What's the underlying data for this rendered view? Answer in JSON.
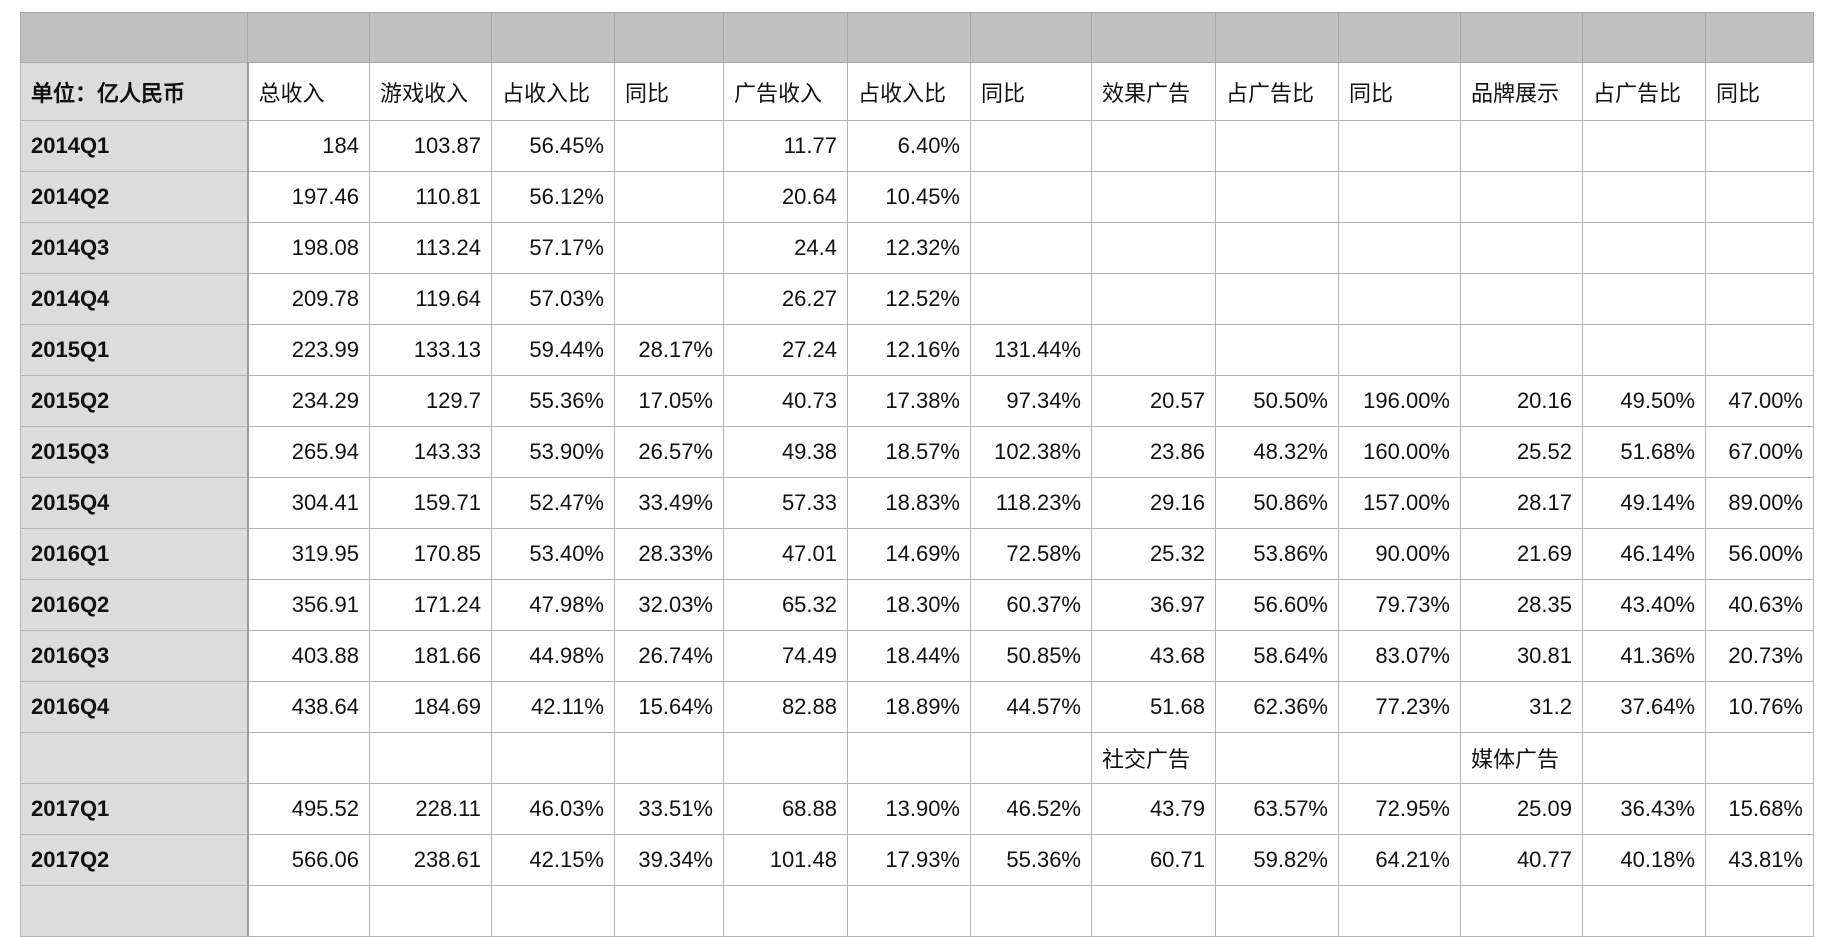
{
  "sheet": {
    "colors": {
      "top_band": "#c0c0c0",
      "row_header": "#dcdcdc",
      "grid": "#b4b4b4"
    },
    "headers": [
      "单位：亿人民币",
      "总收入",
      "游戏收入",
      "占收入比",
      "同比",
      "广告收入",
      "占收入比",
      "同比",
      "效果广告",
      "占广告比",
      "同比",
      "品牌展示",
      "占广告比",
      "同比"
    ],
    "rows": [
      [
        "2014Q1",
        "184",
        "103.87",
        "56.45%",
        "",
        "11.77",
        "6.40%",
        "",
        "",
        "",
        "",
        "",
        "",
        ""
      ],
      [
        "2014Q2",
        "197.46",
        "110.81",
        "56.12%",
        "",
        "20.64",
        "10.45%",
        "",
        "",
        "",
        "",
        "",
        "",
        ""
      ],
      [
        "2014Q3",
        "198.08",
        "113.24",
        "57.17%",
        "",
        "24.4",
        "12.32%",
        "",
        "",
        "",
        "",
        "",
        "",
        ""
      ],
      [
        "2014Q4",
        "209.78",
        "119.64",
        "57.03%",
        "",
        "26.27",
        "12.52%",
        "",
        "",
        "",
        "",
        "",
        "",
        ""
      ],
      [
        "2015Q1",
        "223.99",
        "133.13",
        "59.44%",
        "28.17%",
        "27.24",
        "12.16%",
        "131.44%",
        "",
        "",
        "",
        "",
        "",
        ""
      ],
      [
        "2015Q2",
        "234.29",
        "129.7",
        "55.36%",
        "17.05%",
        "40.73",
        "17.38%",
        "97.34%",
        "20.57",
        "50.50%",
        "196.00%",
        "20.16",
        "49.50%",
        "47.00%"
      ],
      [
        "2015Q3",
        "265.94",
        "143.33",
        "53.90%",
        "26.57%",
        "49.38",
        "18.57%",
        "102.38%",
        "23.86",
        "48.32%",
        "160.00%",
        "25.52",
        "51.68%",
        "67.00%"
      ],
      [
        "2015Q4",
        "304.41",
        "159.71",
        "52.47%",
        "33.49%",
        "57.33",
        "18.83%",
        "118.23%",
        "29.16",
        "50.86%",
        "157.00%",
        "28.17",
        "49.14%",
        "89.00%"
      ],
      [
        "2016Q1",
        "319.95",
        "170.85",
        "53.40%",
        "28.33%",
        "47.01",
        "14.69%",
        "72.58%",
        "25.32",
        "53.86%",
        "90.00%",
        "21.69",
        "46.14%",
        "56.00%"
      ],
      [
        "2016Q2",
        "356.91",
        "171.24",
        "47.98%",
        "32.03%",
        "65.32",
        "18.30%",
        "60.37%",
        "36.97",
        "56.60%",
        "79.73%",
        "28.35",
        "43.40%",
        "40.63%"
      ],
      [
        "2016Q3",
        "403.88",
        "181.66",
        "44.98%",
        "26.74%",
        "74.49",
        "18.44%",
        "50.85%",
        "43.68",
        "58.64%",
        "83.07%",
        "30.81",
        "41.36%",
        "20.73%"
      ],
      [
        "2016Q4",
        "438.64",
        "184.69",
        "42.11%",
        "15.64%",
        "82.88",
        "18.89%",
        "44.57%",
        "51.68",
        "62.36%",
        "77.23%",
        "31.2",
        "37.64%",
        "10.76%"
      ],
      [
        "",
        "",
        "",
        "",
        "",
        "",
        "",
        "",
        "社交广告",
        "",
        "",
        "媒体广告",
        "",
        ""
      ],
      [
        "2017Q1",
        "495.52",
        "228.11",
        "46.03%",
        "33.51%",
        "68.88",
        "13.90%",
        "46.52%",
        "43.79",
        "63.57%",
        "72.95%",
        "25.09",
        "36.43%",
        "15.68%"
      ],
      [
        "2017Q2",
        "566.06",
        "238.61",
        "42.15%",
        "39.34%",
        "101.48",
        "17.93%",
        "55.36%",
        "60.71",
        "59.82%",
        "64.21%",
        "40.77",
        "40.18%",
        "43.81%"
      ],
      [
        "",
        "",
        "",
        "",
        "",
        "",
        "",
        "",
        "",
        "",
        "",
        "",
        "",
        ""
      ]
    ]
  }
}
